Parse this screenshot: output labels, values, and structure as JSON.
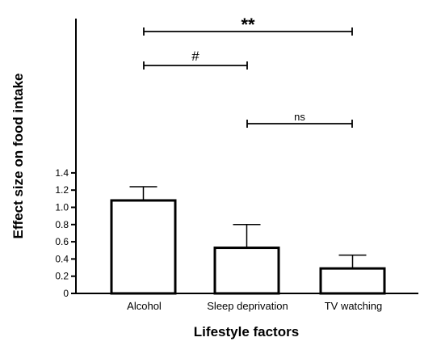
{
  "chart_data": {
    "type": "bar",
    "xlabel": "Lifestyle factors",
    "ylabel": "Effect size on food intake",
    "ylim": [
      0,
      1.6
    ],
    "yticks": [
      "0",
      "0.2",
      "0.4",
      "0.6",
      "0.8",
      "1.0",
      "1.2",
      "1.4"
    ],
    "categories": [
      "Alcohol",
      "Sleep deprivation",
      "TV watching"
    ],
    "values": [
      1.08,
      0.53,
      0.29
    ],
    "errors": [
      0.16,
      0.27,
      0.155
    ],
    "bar_fill": "#ffffff",
    "bar_stroke": "#000000",
    "grid": false,
    "significance": [
      {
        "from": 0,
        "to": 2,
        "label": "**"
      },
      {
        "from": 0,
        "to": 1,
        "label": "#"
      },
      {
        "from": 1,
        "to": 2,
        "label": "ns"
      }
    ]
  }
}
